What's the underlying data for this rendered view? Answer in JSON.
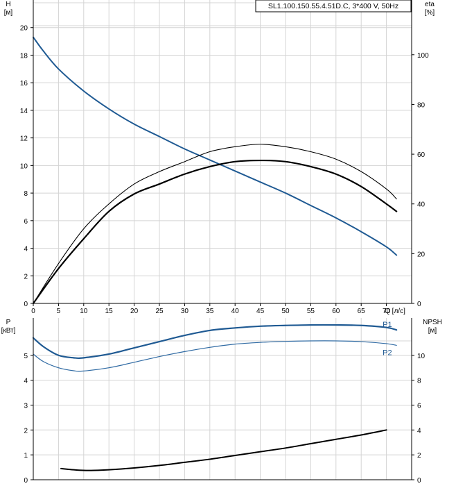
{
  "pump_title": "SL1.100.150.55.4.51D.C, 3*400 V, 50Hz",
  "colors": {
    "head": "#1f5a93",
    "p1": "#1f5a93",
    "p2": "#2f6aa3",
    "eta": "#000000",
    "npsh": "#000000",
    "grid": "#d4d4d4",
    "axis": "#000000"
  },
  "chart_data": [
    {
      "type": "line",
      "panel": "upper",
      "title": "",
      "xlabel": "Q [л/с]",
      "ylabel_left": "H\n[м]",
      "ylabel_right": "eta\n[%]",
      "xlim": [
        0,
        75
      ],
      "ylim_left": [
        0,
        22
      ],
      "ylim_right": [
        0,
        122
      ],
      "x_ticks": [
        "0",
        "5",
        "10",
        "15",
        "20",
        "25",
        "30",
        "35",
        "40",
        "45",
        "50",
        "55",
        "60",
        "65",
        "70"
      ],
      "y_left_ticks": [
        "0",
        "2",
        "4",
        "6",
        "8",
        "10",
        "12",
        "14",
        "16",
        "18",
        "20"
      ],
      "y_right_ticks": [
        "0",
        "20",
        "40",
        "60",
        "80",
        "100"
      ],
      "grid": true,
      "series": [
        {
          "axis": "left",
          "color_key": "head",
          "x": [
            0,
            2,
            5,
            10,
            15,
            20,
            25,
            30,
            35,
            40,
            45,
            50,
            55,
            60,
            65,
            70,
            72
          ],
          "y": [
            19.3,
            18.3,
            17.0,
            15.4,
            14.1,
            13.0,
            12.1,
            11.2,
            10.4,
            9.6,
            8.8,
            8.0,
            7.1,
            6.2,
            5.2,
            4.1,
            3.5
          ]
        },
        {
          "axis": "right",
          "color_key": "eta",
          "width": 2.2,
          "x": [
            0,
            5,
            10,
            15,
            20,
            25,
            30,
            35,
            40,
            45,
            50,
            55,
            60,
            65,
            70,
            72
          ],
          "y": [
            0,
            14,
            26,
            37,
            44,
            48,
            52,
            55,
            57,
            57.5,
            57,
            55,
            52,
            47,
            40,
            37
          ]
        },
        {
          "axis": "right",
          "color_key": "eta",
          "width": 1.1,
          "x": [
            0,
            5,
            10,
            15,
            20,
            25,
            30,
            35,
            40,
            45,
            50,
            55,
            60,
            65,
            70,
            72
          ],
          "y": [
            0,
            16,
            30,
            40,
            48,
            53,
            57,
            61,
            63,
            64,
            63,
            61,
            58,
            53,
            46,
            42
          ]
        }
      ]
    },
    {
      "type": "line",
      "panel": "lower",
      "title": "",
      "xlabel": "",
      "ylabel_left": "P\n[кВт]",
      "ylabel_right": "NPSH\n[м]",
      "xlim": [
        0,
        75
      ],
      "ylim_left": [
        0,
        6.5
      ],
      "ylim_right": [
        0,
        13
      ],
      "y_left_ticks": [
        "0",
        "1",
        "2",
        "3",
        "4",
        "5"
      ],
      "y_right_ticks": [
        "0",
        "2",
        "4",
        "6",
        "8",
        "10"
      ],
      "grid": true,
      "series": [
        {
          "name": "P1",
          "axis": "left",
          "color_key": "p1",
          "width": 2.2,
          "x": [
            0,
            2,
            5,
            8,
            10,
            15,
            20,
            25,
            30,
            35,
            40,
            45,
            50,
            55,
            60,
            65,
            70,
            72
          ],
          "y": [
            5.7,
            5.35,
            5.0,
            4.9,
            4.9,
            5.05,
            5.3,
            5.55,
            5.8,
            6.0,
            6.1,
            6.17,
            6.2,
            6.22,
            6.22,
            6.2,
            6.12,
            6.02
          ]
        },
        {
          "name": "P2",
          "axis": "left",
          "color_key": "p2",
          "width": 1.2,
          "x": [
            0,
            2,
            5,
            8,
            10,
            15,
            20,
            25,
            30,
            35,
            40,
            45,
            50,
            55,
            60,
            65,
            70,
            72
          ],
          "y": [
            5.05,
            4.75,
            4.5,
            4.38,
            4.37,
            4.5,
            4.72,
            4.95,
            5.15,
            5.32,
            5.45,
            5.52,
            5.56,
            5.58,
            5.58,
            5.55,
            5.47,
            5.4
          ]
        },
        {
          "axis": "right",
          "color_key": "npsh",
          "width": 2.0,
          "x": [
            5.5,
            8,
            10,
            12,
            15,
            20,
            25,
            30,
            35,
            40,
            45,
            50,
            55,
            60,
            65,
            70
          ],
          "y": [
            0.9,
            0.8,
            0.75,
            0.75,
            0.8,
            0.95,
            1.15,
            1.4,
            1.65,
            1.95,
            2.25,
            2.55,
            2.9,
            3.25,
            3.6,
            4.0
          ]
        }
      ]
    }
  ]
}
